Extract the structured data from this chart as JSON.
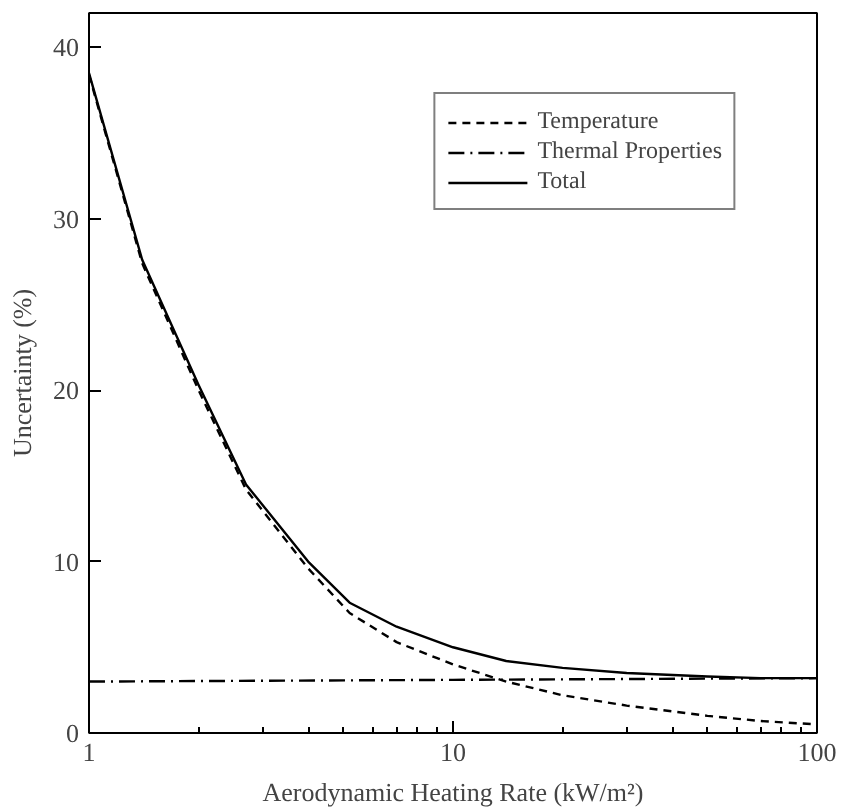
{
  "chart_data": {
    "type": "line",
    "xlabel": "Aerodynamic Heating Rate (kW/m²)",
    "ylabel": "Uncertainty (%)",
    "log": "x",
    "xlim": [
      1,
      100
    ],
    "xticks": [
      1,
      10,
      100
    ],
    "ylim": [
      0,
      42
    ],
    "yticks": [
      0,
      10,
      20,
      30,
      40
    ],
    "grid": false,
    "legend": "top right",
    "marker": "none",
    "series": [
      {
        "name": "Temperature",
        "color": "#000000",
        "line_style": "dashed",
        "x": [
          1,
          1.4,
          2,
          2.7,
          4,
          5.2,
          7,
          10,
          14,
          20,
          30,
          50,
          70,
          100
        ],
        "values": [
          38.4,
          27.4,
          20,
          14.2,
          9.6,
          7.0,
          5.3,
          4.0,
          3.0,
          2.2,
          1.6,
          1.0,
          0.7,
          0.5
        ]
      },
      {
        "name": "Thermal Properties",
        "color": "#000000",
        "line_style": "dashdot",
        "x": [
          1,
          10,
          100
        ],
        "values": [
          3.0,
          3.1,
          3.2
        ]
      },
      {
        "name": "Total",
        "color": "#000000",
        "line_style": "solid",
        "x": [
          1,
          1.4,
          2,
          2.7,
          4,
          5.2,
          7,
          10,
          14,
          20,
          30,
          50,
          70,
          100
        ],
        "values": [
          38.5,
          27.6,
          20.3,
          14.5,
          10.0,
          7.6,
          6.2,
          5.0,
          4.2,
          3.8,
          3.5,
          3.3,
          3.2,
          3.2
        ]
      }
    ]
  }
}
